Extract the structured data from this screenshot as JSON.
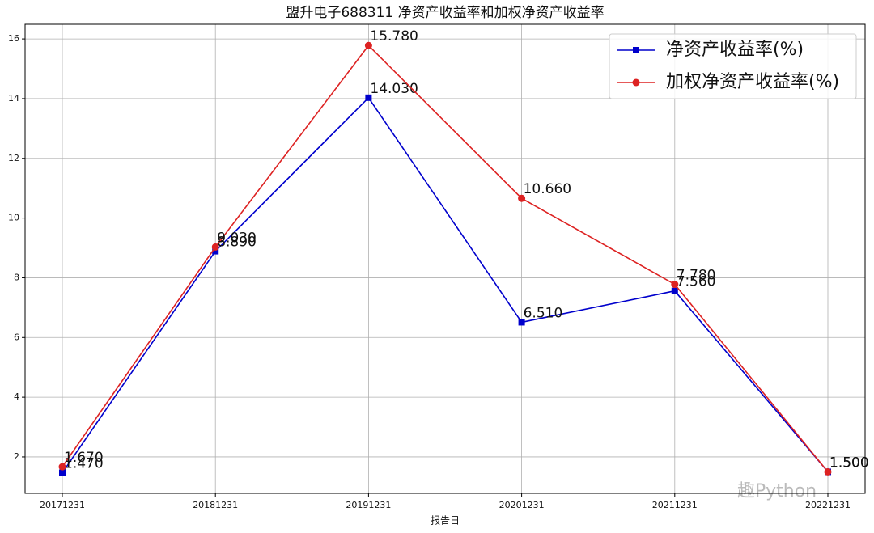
{
  "chart_data": {
    "type": "line",
    "title": "盟升电子688311 净资产收益率和加权净资产收益率",
    "x_label": "报告日",
    "categories": [
      "20171231",
      "20181231",
      "20191231",
      "20201231",
      "20211231",
      "20221231"
    ],
    "series": [
      {
        "name": "净资产收益率(%)",
        "color": "#0000cc",
        "marker": "square",
        "values": [
          1.47,
          8.89,
          14.03,
          6.51,
          7.56,
          1.5
        ],
        "value_labels": [
          "1.470",
          "8.890",
          "14.030",
          "6.510",
          "7.560",
          "1.500"
        ]
      },
      {
        "name": "加权净资产收益率(%)",
        "color": "#dd2222",
        "marker": "circle",
        "values": [
          1.67,
          9.03,
          15.78,
          10.66,
          7.78,
          1.5
        ],
        "value_labels": [
          "1.670",
          "9.030",
          "15.780",
          "10.660",
          "7.780",
          "1.500"
        ]
      }
    ],
    "ylim": [
      0.78,
      16.49
    ],
    "yticks": [
      2,
      4,
      6,
      8,
      10,
      12,
      14,
      16
    ],
    "grid": true,
    "legend": "upper right",
    "watermark": "趣Python"
  }
}
